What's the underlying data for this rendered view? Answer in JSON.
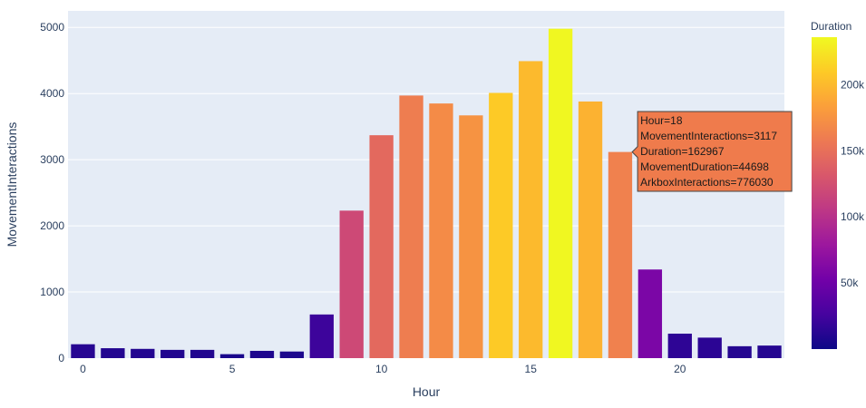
{
  "chart_data": {
    "type": "bar",
    "xlabel": "Hour",
    "ylabel": "MovementInteractions",
    "x": [
      0,
      1,
      2,
      3,
      4,
      5,
      6,
      7,
      8,
      9,
      10,
      11,
      12,
      13,
      14,
      15,
      16,
      17,
      18,
      19,
      20,
      21,
      22,
      23
    ],
    "values": [
      210,
      150,
      140,
      125,
      125,
      60,
      110,
      100,
      660,
      2230,
      3370,
      3970,
      3850,
      3670,
      4010,
      4490,
      4980,
      3880,
      3117,
      1340,
      370,
      310,
      180,
      190
    ],
    "color_values": [
      12000,
      10000,
      10000,
      9000,
      9000,
      6000,
      8000,
      7000,
      22000,
      120000,
      145000,
      160000,
      170000,
      175000,
      210000,
      200000,
      235000,
      195000,
      162967,
      58000,
      15000,
      14000,
      11000,
      11000
    ],
    "xlim": [
      -0.5,
      23.5
    ],
    "ylim": [
      0,
      5250
    ],
    "x_ticks": [
      0,
      5,
      10,
      15,
      20
    ],
    "x_tick_labels": [
      "0",
      "5",
      "10",
      "15",
      "20"
    ],
    "y_ticks": [
      0,
      1000,
      2000,
      3000,
      4000,
      5000
    ],
    "y_tick_labels": [
      "0",
      "1000",
      "2000",
      "3000",
      "4000",
      "5000"
    ],
    "grid": true,
    "colorbar": {
      "title": "Duration",
      "range": [
        0,
        236000
      ],
      "ticks": [
        50000,
        100000,
        150000,
        200000
      ],
      "tick_labels": [
        "50k",
        "100k",
        "150k",
        "200k"
      ],
      "colorscale": [
        "#0d0887",
        "#46039f",
        "#7201a8",
        "#9c179e",
        "#bd3786",
        "#d8576b",
        "#ed7953",
        "#fb9f3a",
        "#fdca26",
        "#f0f921"
      ]
    },
    "tooltip": {
      "hour_index": 18,
      "lines": [
        "Hour=18",
        "MovementInteractions=3117",
        "Duration=162967",
        "MovementDuration=44698",
        "ArkboxInteractions=776030"
      ],
      "background": "#ef7b4c"
    },
    "colors": {
      "plot_background": "#e5ecf6",
      "grid": "#ffffff",
      "text": "#2a3f5f"
    }
  }
}
